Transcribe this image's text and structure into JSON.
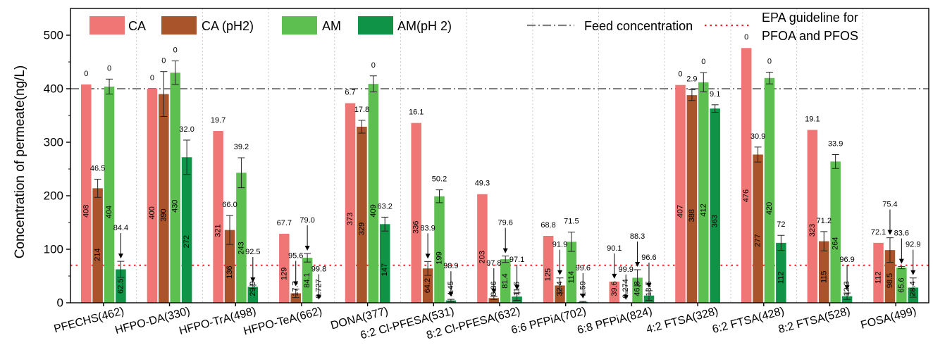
{
  "chart_data": {
    "type": "bar",
    "ylabel": "Concentration of permeate(ng/L)",
    "ylim": [
      0,
      550
    ],
    "yticks": [
      0,
      100,
      200,
      300,
      400,
      500
    ],
    "grid": "vertical dotted separators between categories",
    "categories": [
      "PFECHS(462)",
      "HFPO-DA(330)",
      "HFPO-TrA(498)",
      "HFPO-TeA(662)",
      "DONA(377)",
      "6:2 Cl-PFESA(531)",
      "8:2 Cl-PFESA(632)",
      "6:6 PFPiA(702)",
      "6:8 PFPiA(824)",
      "4:2 FTSA(328)",
      "6:2 FTSA(428)",
      "8:2 FTSA(528)",
      "FOSA(499)"
    ],
    "series": [
      {
        "name": "CA",
        "color": "#f07575",
        "values": [
          408,
          400,
          321,
          129,
          373,
          336,
          203,
          125,
          39.6,
          407,
          476,
          323,
          112
        ],
        "value_labels": [
          "408",
          "400",
          "321",
          "129",
          "373",
          "336",
          "203",
          "125",
          "39.6",
          "407",
          "476",
          "323",
          "112"
        ],
        "errors": [
          0,
          0,
          0,
          0,
          0,
          0,
          0,
          0,
          0,
          0,
          0,
          0,
          0
        ],
        "rejections": [
          "0",
          "0",
          "19.7",
          "67.7",
          "6.7",
          "16.1",
          "49.3",
          "68.8",
          "90.1",
          "0",
          "0",
          "19.1",
          "72.1"
        ]
      },
      {
        "name": "CA (pH2)",
        "color": "#a9542a",
        "values": [
          214,
          390,
          136,
          17.7,
          329,
          64.2,
          8.86,
          32.4,
          0.274,
          388,
          277,
          115,
          98.5
        ],
        "value_labels": [
          "214",
          "390",
          "136",
          "17.7",
          "329",
          "64.2",
          "8.86",
          "32.4",
          "0.274",
          "388",
          "277",
          "115",
          "98.5"
        ],
        "errors": [
          17,
          42,
          27,
          8,
          12,
          13,
          3,
          14,
          0,
          10,
          14,
          18,
          23
        ],
        "rejections": [
          "46.5",
          "0",
          "66.0",
          "95.6",
          "17.8",
          "83.9",
          "97.8",
          "91.9",
          "99.9",
          "2.9",
          "30.9",
          "71.2",
          "75.4"
        ]
      },
      {
        "name": "AM",
        "color": "#5cbf50",
        "values": [
          404,
          430,
          243,
          84.1,
          409,
          199,
          81.4,
          114,
          46.8,
          412,
          420,
          264,
          65.6
        ],
        "value_labels": [
          "404",
          "430",
          "243",
          "84.1",
          "409",
          "199",
          "81.4",
          "114",
          "46.8",
          "412",
          "420",
          "264",
          "65.6"
        ],
        "errors": [
          14,
          22,
          28,
          8,
          15,
          12,
          6,
          18,
          15,
          18,
          11,
          13,
          2
        ],
        "rejections": [
          "0",
          "0",
          "39.2",
          "79.0",
          "0",
          "50.2",
          "79.6",
          "71.5",
          "88.3",
          "0",
          "0",
          "33.9",
          "83.6"
        ]
      },
      {
        "name": "AM(pH 2)",
        "color": "#0f9447",
        "values": [
          62.5,
          272,
          29.9,
          0.727,
          147,
          4.45,
          11.6,
          1.59,
          13.5,
          363,
          112,
          12.3,
          28.4
        ],
        "value_labels": [
          "62.5",
          "272",
          "29.9",
          "0.727",
          "147",
          "4.45",
          "11.6",
          "1.59",
          "13.5",
          "363",
          "112",
          "12.3",
          "28.4"
        ],
        "errors": [
          15,
          32,
          3,
          0,
          13,
          2,
          7,
          1,
          9,
          7,
          14,
          6,
          18
        ],
        "rejections": [
          "84.4",
          "32.0",
          "92.5",
          "99.8",
          "63.2",
          "98.9",
          "97.1",
          "99.6",
          "96.6",
          "9.1",
          "72",
          "96.9",
          "92.9"
        ]
      }
    ],
    "reference_lines": [
      {
        "name": "Feed concentration",
        "value": 400,
        "style": "dash-dot",
        "color": "#808080"
      },
      {
        "name": "EPA guideline for PFOA and PFOS",
        "value": 70,
        "style": "dotted",
        "color": "#e8212b"
      }
    ],
    "legend": {
      "placement": "top",
      "ref_line_1_text": "Feed concentration",
      "ref_line_2_text_1": "EPA guideline for",
      "ref_line_2_text_2": "PFOA and PFOS"
    }
  }
}
